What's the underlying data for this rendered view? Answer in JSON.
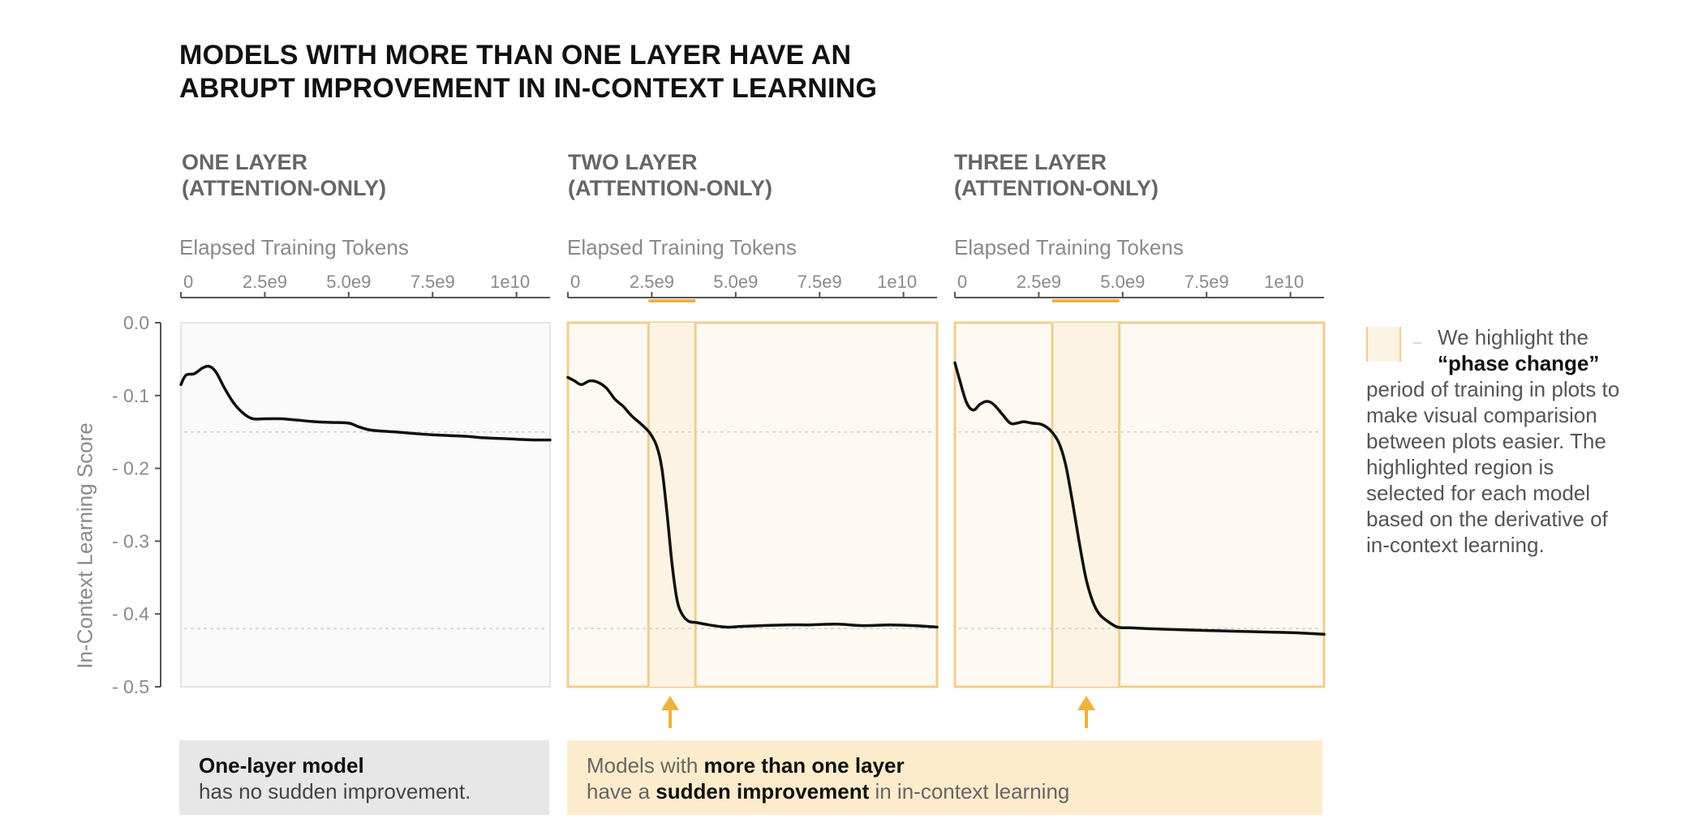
{
  "title_line1": "MODELS WITH MORE THAN ONE LAYER HAVE AN",
  "title_line2": "ABRUPT IMPROVEMENT IN IN-CONTEXT LEARNING",
  "ylabel": "In-Context Learning Score",
  "colors": {
    "line": "#111111",
    "phase_fill": "#fdf3e2",
    "phase_border": "#f1cd8d",
    "highlight_panel_bg": "#fefaf3",
    "plain_panel_bg": "#fafafa",
    "arrow": "#f0b23e",
    "grid": "#cfcfcf"
  },
  "note": {
    "line1": "We highlight the",
    "line2": "“phase change”",
    "rest": [
      "period of training in plots to",
      "make visual comparision",
      "between plots easier. The",
      "highlighted region is",
      "selected for each model",
      "based on the derivative of",
      "in-context learning."
    ]
  },
  "callouts": {
    "one_layer": {
      "bold": "One-layer model",
      "text": "has no sudden improvement."
    },
    "multi_layer": {
      "part1": "Models with ",
      "bold1": "more than one layer",
      "part2": "have a ",
      "bold2": "sudden improvement",
      "part3": " in in-context learning"
    }
  },
  "chart_data": [
    {
      "type": "line",
      "title_line1": "ONE LAYER",
      "title_line2": "(ATTENTION-ONLY)",
      "xlabel": "Elapsed Training Tokens",
      "xlim": [
        0,
        11000000000
      ],
      "x_ticks": [
        0,
        2500000000,
        5000000000,
        7500000000,
        10000000000
      ],
      "x_tick_labels": [
        "0",
        "2.5e9",
        "5.0e9",
        "7.5e9",
        "1e10"
      ],
      "ylim": [
        -0.5,
        0
      ],
      "y_ticks": [
        0,
        -0.1,
        -0.2,
        -0.3,
        -0.4,
        -0.5
      ],
      "y_tick_labels": [
        "0.0",
        "- 0.1",
        "- 0.2",
        "- 0.3",
        "- 0.4",
        "- 0.5"
      ],
      "reference_lines": [
        -0.15,
        -0.42
      ],
      "phase_change": null,
      "series": [
        {
          "x": [
            0,
            150000000,
            400000000,
            650000000,
            850000000,
            1050000000,
            1300000000,
            1600000000,
            1900000000,
            2150000000,
            2500000000,
            3000000000,
            3500000000,
            4000000000,
            4500000000,
            5000000000,
            5300000000,
            5600000000,
            6000000000,
            6400000000,
            6900000000,
            7500000000,
            8000000000,
            8500000000,
            9000000000,
            9500000000,
            10000000000,
            10500000000,
            11000000000
          ],
          "y": [
            -0.085,
            -0.072,
            -0.07,
            -0.062,
            -0.06,
            -0.068,
            -0.09,
            -0.112,
            -0.126,
            -0.132,
            -0.132,
            -0.132,
            -0.134,
            -0.136,
            -0.137,
            -0.138,
            -0.143,
            -0.147,
            -0.149,
            -0.15,
            -0.152,
            -0.154,
            -0.155,
            -0.156,
            -0.158,
            -0.159,
            -0.16,
            -0.161,
            -0.161
          ]
        }
      ]
    },
    {
      "type": "line",
      "title_line1": "TWO LAYER",
      "title_line2": "(ATTENTION-ONLY)",
      "xlabel": "Elapsed Training Tokens",
      "xlim": [
        0,
        11000000000
      ],
      "x_ticks": [
        0,
        2500000000,
        5000000000,
        7500000000,
        10000000000
      ],
      "x_tick_labels": [
        "0",
        "2.5e9",
        "5.0e9",
        "7.5e9",
        "1e10"
      ],
      "ylim": [
        -0.5,
        0
      ],
      "y_ticks": [
        0,
        -0.1,
        -0.2,
        -0.3,
        -0.4,
        -0.5
      ],
      "reference_lines": [
        -0.15,
        -0.42
      ],
      "phase_change": [
        2400000000,
        3800000000
      ],
      "series": [
        {
          "x": [
            0,
            200000000,
            400000000,
            650000000,
            900000000,
            1150000000,
            1400000000,
            1650000000,
            1900000000,
            2200000000,
            2450000000,
            2650000000,
            2800000000,
            2950000000,
            3100000000,
            3250000000,
            3400000000,
            3600000000,
            3850000000,
            4200000000,
            4700000000,
            5200000000,
            5800000000,
            6500000000,
            7200000000,
            8000000000,
            8800000000,
            9600000000,
            10300000000,
            11000000000
          ],
          "y": [
            -0.075,
            -0.08,
            -0.085,
            -0.08,
            -0.082,
            -0.09,
            -0.105,
            -0.115,
            -0.128,
            -0.14,
            -0.152,
            -0.17,
            -0.2,
            -0.26,
            -0.33,
            -0.38,
            -0.4,
            -0.41,
            -0.412,
            -0.415,
            -0.418,
            -0.417,
            -0.416,
            -0.415,
            -0.415,
            -0.414,
            -0.416,
            -0.415,
            -0.416,
            -0.418
          ]
        }
      ]
    },
    {
      "type": "line",
      "title_line1": "THREE LAYER",
      "title_line2": "(ATTENTION-ONLY)",
      "xlabel": "Elapsed Training Tokens",
      "xlim": [
        0,
        11000000000
      ],
      "x_ticks": [
        0,
        2500000000,
        5000000000,
        7500000000,
        10000000000
      ],
      "x_tick_labels": [
        "0",
        "2.5e9",
        "5.0e9",
        "7.5e9",
        "1e10"
      ],
      "ylim": [
        -0.5,
        0
      ],
      "y_ticks": [
        0,
        -0.1,
        -0.2,
        -0.3,
        -0.4,
        -0.5
      ],
      "reference_lines": [
        -0.15,
        -0.42
      ],
      "phase_change": [
        2900000000,
        4900000000
      ],
      "series": [
        {
          "x": [
            0,
            150000000,
            350000000,
            550000000,
            750000000,
            950000000,
            1150000000,
            1400000000,
            1650000000,
            1850000000,
            2050000000,
            2300000000,
            2600000000,
            2850000000,
            3100000000,
            3300000000,
            3500000000,
            3700000000,
            3900000000,
            4100000000,
            4300000000,
            4550000000,
            4850000000,
            5200000000,
            5700000000,
            6300000000,
            7000000000,
            7800000000,
            8600000000,
            9400000000,
            10200000000,
            11000000000
          ],
          "y": [
            -0.055,
            -0.08,
            -0.11,
            -0.12,
            -0.112,
            -0.108,
            -0.112,
            -0.125,
            -0.138,
            -0.138,
            -0.136,
            -0.138,
            -0.14,
            -0.148,
            -0.165,
            -0.195,
            -0.245,
            -0.3,
            -0.35,
            -0.382,
            -0.4,
            -0.41,
            -0.418,
            -0.419,
            -0.42,
            -0.421,
            -0.422,
            -0.423,
            -0.424,
            -0.425,
            -0.426,
            -0.428
          ]
        }
      ]
    }
  ]
}
